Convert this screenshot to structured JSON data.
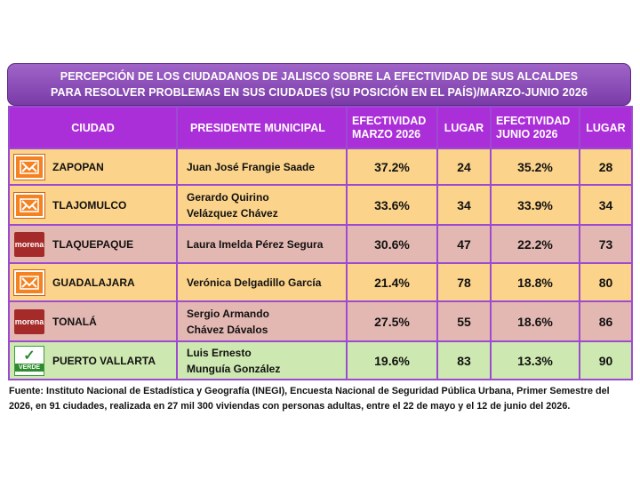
{
  "title": {
    "line1": "PERCEPCIÓN DE LOS CIUDADANOS DE JALISCO SOBRE LA EFECTIVIDAD DE SUS ALCALDES",
    "line2": "PARA RESOLVER PROBLEMAS EN SUS CIUDADES (SU POSICIÓN EN EL PAÍS)/MARZO-JUNIO 2026"
  },
  "headers": {
    "ciudad": "CIUDAD",
    "presidente": "PRESIDENTE MUNICIPAL",
    "efec_marzo_1": "EFECTIVIDAD",
    "efec_marzo_2": "MARZO 2026",
    "lugar1": "LUGAR",
    "efec_junio_1": "EFECTIVIDAD",
    "efec_junio_2": "JUNIO 2026",
    "lugar2": "LUGAR"
  },
  "rows": [
    {
      "ciudad": "ZAPOPAN",
      "presidente_1": "Juan José Frangie Saade",
      "presidente_2": "",
      "efec_marzo": "37.2%",
      "lugar_marzo": "24",
      "efec_junio": "35.2%",
      "lugar_junio": "28",
      "party": "mc-icon",
      "logo_text": "",
      "row_color": "#fbd38a"
    },
    {
      "ciudad": "TLAJOMULCO",
      "presidente_1": "Gerardo Quirino",
      "presidente_2": "Velázquez Chávez",
      "efec_marzo": "33.6%",
      "lugar_marzo": "34",
      "efec_junio": "33.9%",
      "lugar_junio": "34",
      "party": "mc-icon",
      "logo_text": "",
      "row_color": "#fbd38a"
    },
    {
      "ciudad": "TLAQUEPAQUE",
      "presidente_1": "Laura Imelda Pérez Segura",
      "presidente_2": "",
      "efec_marzo": "30.6%",
      "lugar_marzo": "47",
      "efec_junio": "22.2%",
      "lugar_junio": "73",
      "party": "morena-icon",
      "logo_text": "morena",
      "row_color": "#e4b8b2"
    },
    {
      "ciudad": "GUADALAJARA",
      "presidente_1": "Verónica Delgadillo García",
      "presidente_2": "",
      "efec_marzo": "21.4%",
      "lugar_marzo": "78",
      "efec_junio": "18.8%",
      "lugar_junio": "80",
      "party": "mc-icon",
      "logo_text": "",
      "row_color": "#fbd38a"
    },
    {
      "ciudad": "TONALÁ",
      "presidente_1": "Sergio Armando",
      "presidente_2": "Chávez Dávalos",
      "efec_marzo": "27.5%",
      "lugar_marzo": "55",
      "efec_junio": "18.6%",
      "lugar_junio": "86",
      "party": "morena-icon",
      "logo_text": "morena",
      "row_color": "#e4b8b2"
    },
    {
      "ciudad": "PUERTO VALLARTA",
      "presidente_1": "Luis Ernesto",
      "presidente_2": "Munguía González",
      "efec_marzo": "19.6%",
      "lugar_marzo": "83",
      "efec_junio": "13.3%",
      "lugar_junio": "90",
      "party": "verde-icon",
      "logo_text": "VERDE",
      "row_color": "#cde8b0"
    }
  ],
  "footnote": "Fuente: Instituto Nacional de Estadística y Geografía (INEGI), Encuesta Nacional de Seguridad Pública Urbana, Primer Semestre del 2026, en 91 ciudades, realizada en 27 mil 300 viviendas con personas adultas, entre el 22 de mayo y el 12 de junio del 2026.",
  "colors": {
    "header": "#ab2fd8",
    "title_bg": "#8a4cb8",
    "orange_row": "#fbd38a",
    "pink_row": "#e4b8b2",
    "green_row": "#cde8b0"
  }
}
